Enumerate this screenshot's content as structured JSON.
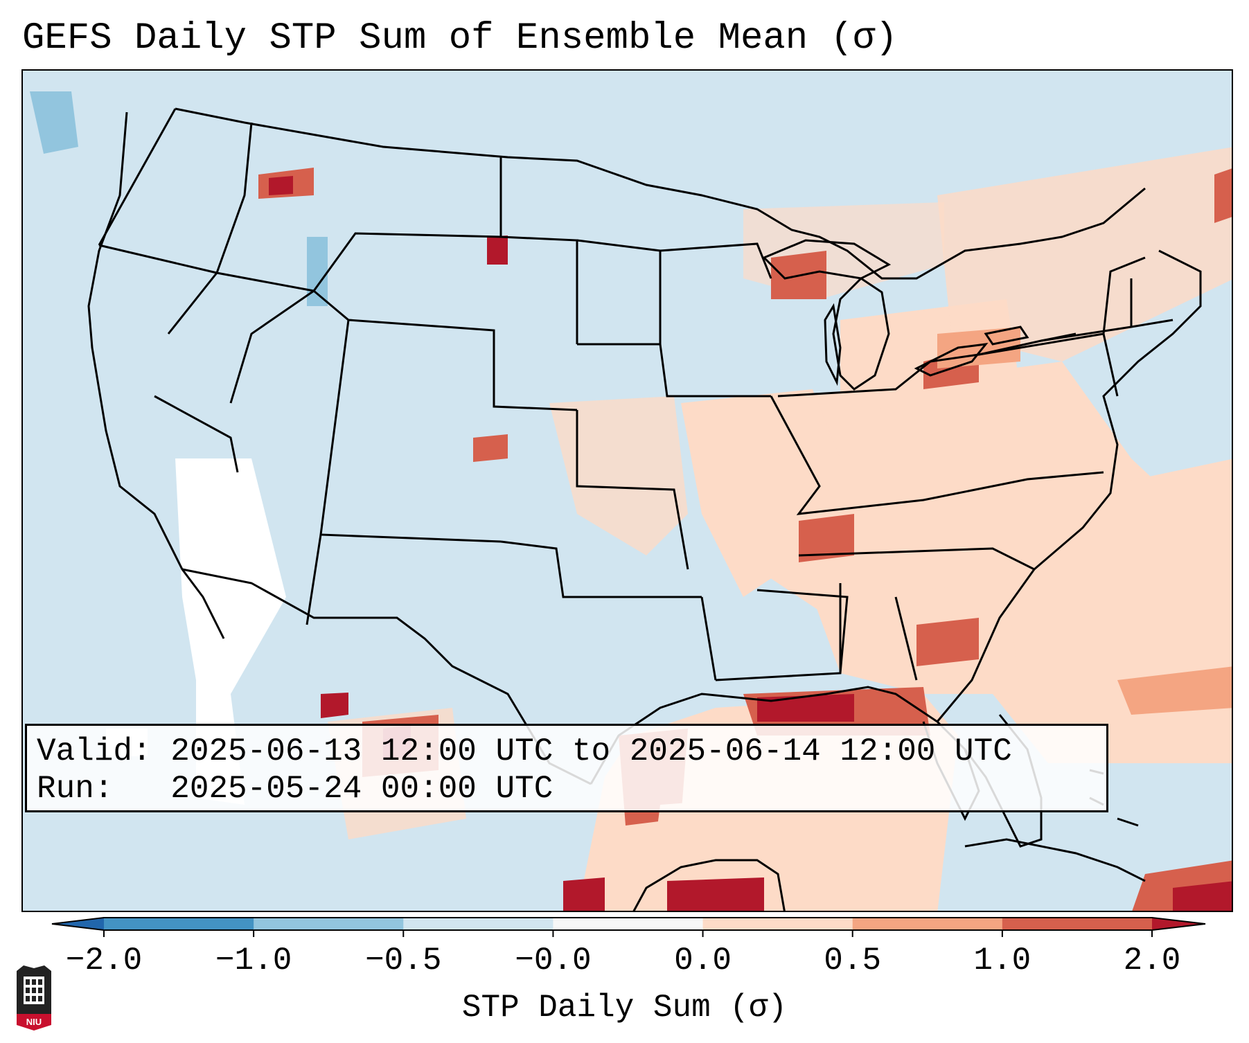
{
  "title": "GEFS Daily STP Sum of Ensemble Mean (σ)",
  "info_box": {
    "valid_line": "Valid: 2025-06-13 12:00 UTC to 2025-06-14 12:00 UTC",
    "run_line": "Run:   2025-05-24 00:00 UTC"
  },
  "colorbar": {
    "label": "STP Daily Sum (σ)",
    "ticks": [
      "−2.0",
      "−1.0",
      "−0.5",
      "−0.0",
      "0.0",
      "0.5",
      "1.0",
      "2.0"
    ],
    "bins": [
      {
        "from": -2.0,
        "to": -1.0,
        "color": "#4393c3"
      },
      {
        "from": -1.0,
        "to": -0.5,
        "color": "#92c5de"
      },
      {
        "from": -0.5,
        "to": -0.0,
        "color": "#d1e5f0"
      },
      {
        "from": -0.0,
        "to": 0.0,
        "color": "#f7f7f7"
      },
      {
        "from": 0.0,
        "to": 0.5,
        "color": "#fddbc7"
      },
      {
        "from": 0.5,
        "to": 1.0,
        "color": "#f4a582"
      },
      {
        "from": 1.0,
        "to": 2.0,
        "color": "#d6604d"
      }
    ],
    "under_color": "#2166ac",
    "over_color": "#b2182b"
  },
  "logo_text": "NIU",
  "colors": {
    "background": "#d1e5f0",
    "light_pos": "#fddbc7",
    "mid_pos": "#f4a582",
    "high_pos": "#d6604d",
    "very_high": "#b2182b",
    "neutral": "#ffffff",
    "neg": "#92c5de"
  }
}
